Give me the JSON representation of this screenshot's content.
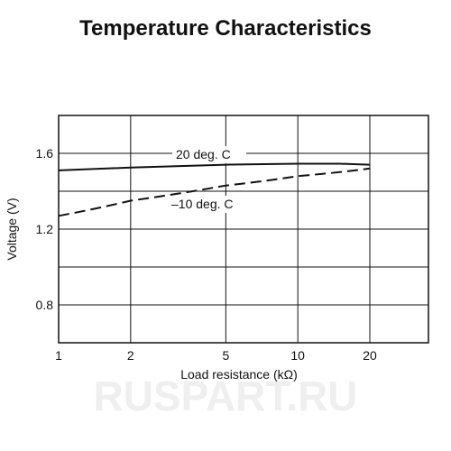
{
  "watermark": {
    "text": "RUSPART.RU"
  },
  "chart_data": {
    "type": "line",
    "title": "Temperature Characteristics",
    "xlabel": "Load resistance (kΩ)",
    "ylabel": "Voltage (V)",
    "xscale": "log",
    "xlim": [
      1,
      20
    ],
    "ylim": [
      0.6,
      1.8
    ],
    "xticks": [
      1,
      2,
      5,
      10,
      20
    ],
    "yticks": [
      0.8,
      1.2,
      1.6
    ],
    "grid": true,
    "series": [
      {
        "name": "20 deg. C",
        "style": "solid",
        "x": [
          1,
          2,
          5,
          10,
          15,
          20
        ],
        "y": [
          1.51,
          1.525,
          1.54,
          1.545,
          1.545,
          1.54
        ]
      },
      {
        "name": "–10 deg. C",
        "style": "dashed",
        "x": [
          1,
          2,
          5,
          10,
          20
        ],
        "y": [
          1.27,
          1.35,
          1.43,
          1.48,
          1.52
        ]
      }
    ]
  }
}
